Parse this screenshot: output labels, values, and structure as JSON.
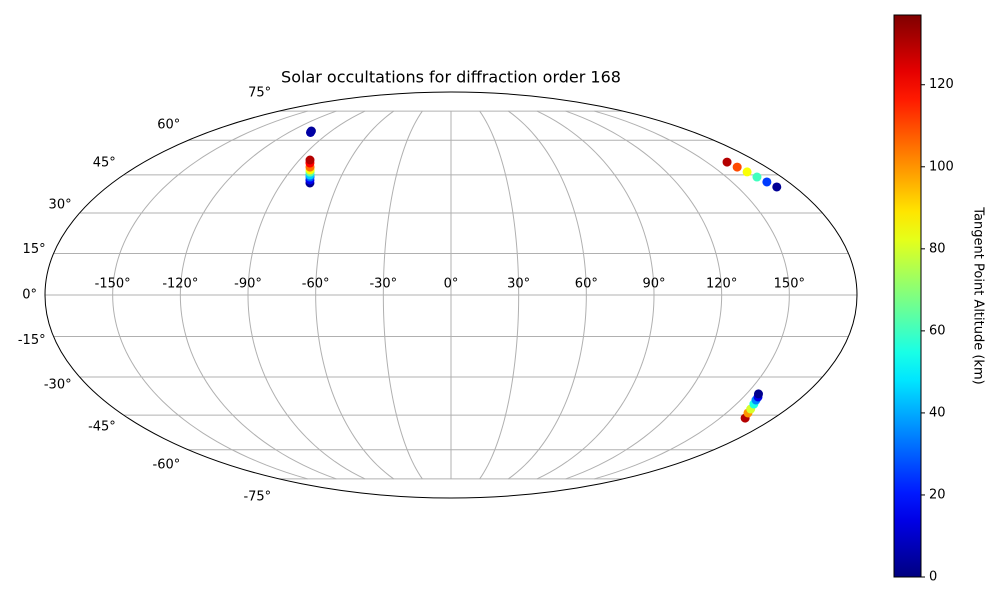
{
  "chart_data": {
    "type": "scatter",
    "projection": "mollweide",
    "title": "Solar occultations for diffraction order 168",
    "x": [
      -105,
      -104,
      -75,
      -75.9,
      -76.8,
      -77.5,
      -78.5,
      -79.3,
      -80.5,
      -82.3,
      -83.7,
      161.9,
      163.4,
      165.1,
      166.7,
      168.6,
      170.6,
      164.0,
      161.8,
      160.6,
      159.2,
      158.0,
      157.4,
      156.1
    ],
    "y": [
      64.4,
      63.7,
      41.7,
      42.9,
      44.1,
      44.9,
      46.1,
      47.0,
      48.2,
      49.9,
      51.2,
      50.3,
      48.2,
      46.2,
      44.1,
      42.1,
      40.1,
      -46.2,
      -44.1,
      -42.5,
      -40.5,
      -38.9,
      -37.7,
      -36.5
    ],
    "c": [
      3,
      5,
      2,
      15,
      30,
      45,
      65,
      85,
      105,
      120,
      130,
      130,
      110,
      85,
      60,
      25,
      3,
      130,
      100,
      80,
      55,
      35,
      15,
      2
    ],
    "xticks": [
      {
        "value": -150,
        "label": "-150°"
      },
      {
        "value": -120,
        "label": "-120°"
      },
      {
        "value": -90,
        "label": "-90°"
      },
      {
        "value": -60,
        "label": "-60°"
      },
      {
        "value": -30,
        "label": "-30°"
      },
      {
        "value": 0,
        "label": "0°"
      },
      {
        "value": 30,
        "label": "30°"
      },
      {
        "value": 60,
        "label": "60°"
      },
      {
        "value": 90,
        "label": "90°"
      },
      {
        "value": 120,
        "label": "120°"
      },
      {
        "value": 150,
        "label": "150°"
      }
    ],
    "yticks": [
      {
        "value": 75,
        "label": "75°"
      },
      {
        "value": 60,
        "label": "60°"
      },
      {
        "value": 45,
        "label": "45°"
      },
      {
        "value": 30,
        "label": "30°"
      },
      {
        "value": 15,
        "label": "15°"
      },
      {
        "value": 0,
        "label": "0°"
      },
      {
        "value": -15,
        "label": "-15°"
      },
      {
        "value": -30,
        "label": "-30°"
      },
      {
        "value": -45,
        "label": "-45°"
      },
      {
        "value": -60,
        "label": "-60°"
      },
      {
        "value": -75,
        "label": "-75°"
      }
    ],
    "grid": true,
    "colormap": "jet",
    "colorbar": {
      "label": "Tangent Point Altitude (km)",
      "lim": [
        0,
        137
      ],
      "ticks": [
        0,
        20,
        40,
        60,
        80,
        100,
        120
      ]
    }
  }
}
